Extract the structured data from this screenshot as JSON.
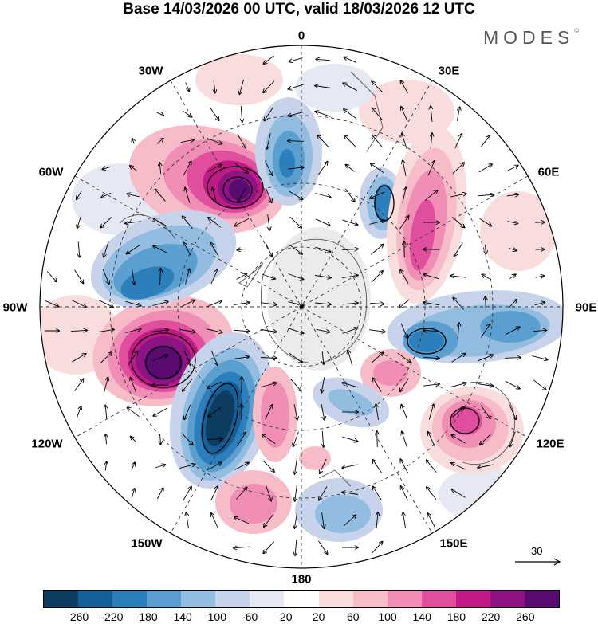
{
  "header": {
    "title": "Base 14/03/2026 00 UTC, valid 18/03/2026 12 UTC",
    "brand": "MODES",
    "brand_mark": "©"
  },
  "map": {
    "projection": "polar-stereographic (south pole)",
    "longitude_labels": {
      "lon_0": "0",
      "lon_30e": "30E",
      "lon_60e": "60E",
      "lon_90e": "90E",
      "lon_120e": "120E",
      "lon_150e": "150E",
      "lon_180": "180",
      "lon_150w": "150W",
      "lon_120w": "120W",
      "lon_90w": "90W",
      "lon_60w": "60W",
      "lon_30w": "30W"
    },
    "anomaly_centers": [
      {
        "name": "positive-anomaly-60w",
        "sign": "positive",
        "peak": 260,
        "lon": "~55W"
      },
      {
        "name": "positive-anomaly-100w",
        "sign": "positive",
        "peak": 260,
        "lon": "~100W"
      },
      {
        "name": "negative-anomaly-80w",
        "sign": "negative",
        "peak": -180,
        "lon": "~80W"
      },
      {
        "name": "negative-anomaly-125w",
        "sign": "negative",
        "peak": -260,
        "lon": "~125W"
      },
      {
        "name": "negative-anomaly-10w",
        "sign": "negative",
        "peak": -180,
        "lon": "~10W"
      },
      {
        "name": "negative-anomaly-30e",
        "sign": "negative",
        "peak": -180,
        "lon": "~30E"
      },
      {
        "name": "positive-anomaly-50e",
        "sign": "positive",
        "peak": 180,
        "lon": "~50E"
      },
      {
        "name": "negative-anomaly-95e",
        "sign": "negative",
        "peak": -180,
        "lon": "~95E"
      },
      {
        "name": "positive-anomaly-125e",
        "sign": "positive",
        "peak": 180,
        "lon": "~125E"
      },
      {
        "name": "positive-anomaly-165w",
        "sign": "positive",
        "peak": 140,
        "lon": "~165W"
      },
      {
        "name": "negative-anomaly-160e",
        "sign": "negative",
        "peak": -100,
        "lon": "~160E"
      }
    ]
  },
  "reference_vector": {
    "label": "30"
  },
  "colorbar": {
    "colors": [
      "#0c3d61",
      "#16609a",
      "#2d7fbb",
      "#5a9fcf",
      "#92bde0",
      "#c6d3ea",
      "#e6e8f3",
      "#ffffff",
      "#f9dcdc",
      "#f6bcc7",
      "#f08eb5",
      "#df4f9d",
      "#c01a86",
      "#8e1483",
      "#5a0b70"
    ],
    "ticks": [
      "-260",
      "-220",
      "-180",
      "-140",
      "-100",
      "-60",
      "-20",
      "20",
      "60",
      "100",
      "140",
      "180",
      "220",
      "260"
    ]
  }
}
